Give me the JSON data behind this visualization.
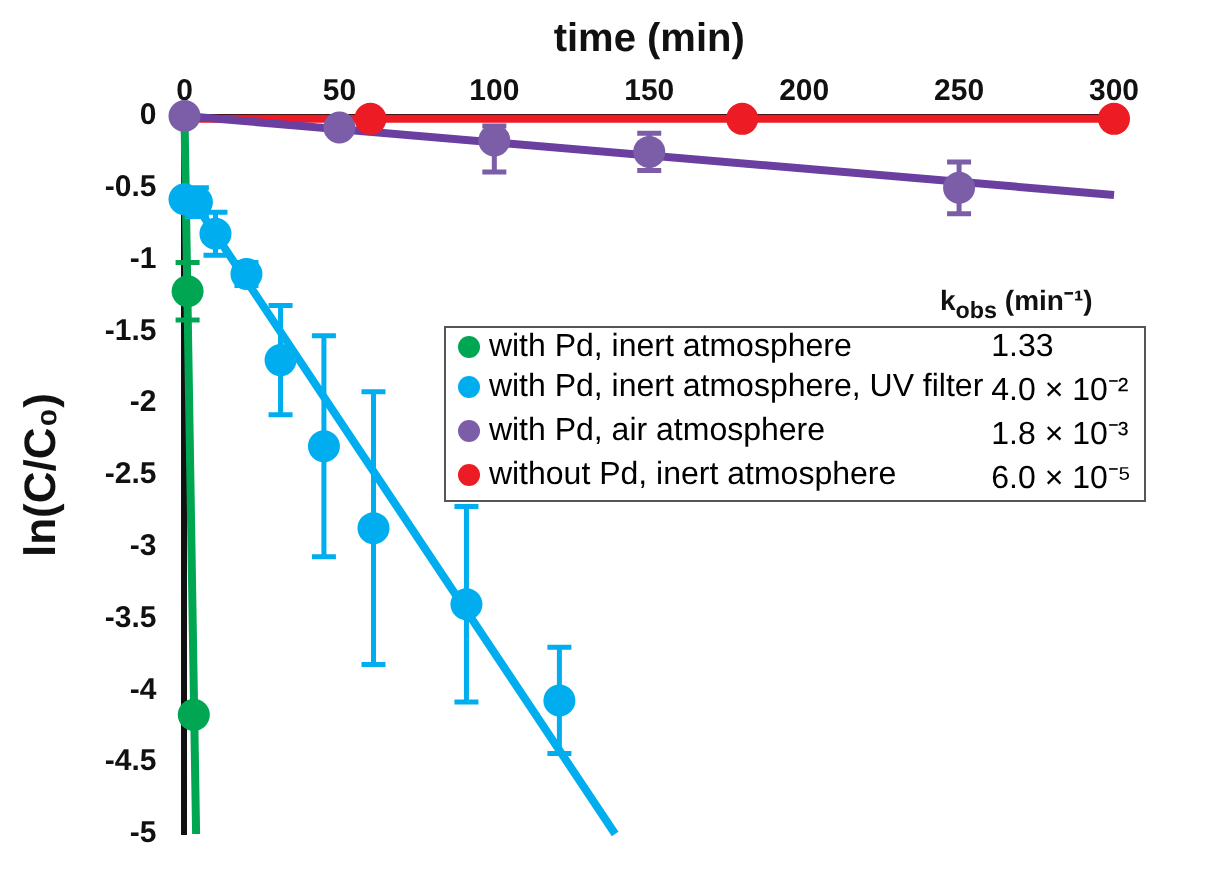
{
  "chart_data": {
    "type": "scatter",
    "xlabel": "time (min)",
    "ylabel": "ln(C/C₀)",
    "xlim": [
      0,
      300
    ],
    "xticks": [
      0,
      50,
      100,
      150,
      200,
      250,
      300
    ],
    "ylim": [
      -5,
      0
    ],
    "yticks": [
      0,
      -0.5,
      -1,
      -1.5,
      -2,
      -2.5,
      -3,
      -3.5,
      -4,
      -4.5,
      -5
    ],
    "grid": false,
    "legend": "right",
    "annotations": [
      "k$_{obs}$ (min⁻¹)",
      "1.33",
      "4.0 × 10⁻²",
      "1.8 × 10⁻³",
      "6.0 × 10⁻⁵"
    ],
    "series": [
      {
        "type": "line",
        "marker": "none",
        "color": "#00a651",
        "x": [
          0,
          3.75
        ],
        "values": [
          0,
          -5
        ]
      },
      {
        "type": "line",
        "marker": "none",
        "color": "#00aeef",
        "x": [
          0,
          139
        ],
        "values": [
          -0.5,
          -5
        ]
      },
      {
        "type": "line",
        "marker": "none",
        "color": "#6a3fa0",
        "x": [
          0,
          300
        ],
        "values": [
          0,
          -0.55
        ]
      },
      {
        "type": "line",
        "marker": "none",
        "color": "#ed1c24",
        "x": [
          0,
          300
        ],
        "values": [
          -0.02,
          -0.02
        ]
      },
      {
        "marker": "circle",
        "name": "with Pd, inert atmosphere",
        "color": "#00a651",
        "x": [
          1,
          3
        ],
        "values": [
          -1.22,
          -4.17
        ],
        "errors": [
          0.2,
          null
        ]
      },
      {
        "marker": "circle",
        "name": "with Pd, inert atmosphere, UV filter",
        "color": "#00aeef",
        "x": [
          0,
          4,
          10,
          20,
          31,
          45,
          61,
          91,
          121
        ],
        "values": [
          -0.58,
          -0.6,
          -0.82,
          -1.1,
          -1.7,
          -2.3,
          -2.87,
          -3.4,
          -4.07
        ],
        "errors": [
          null,
          0.1,
          0.15,
          0.08,
          0.38,
          0.77,
          0.95,
          0.68,
          0.37
        ]
      },
      {
        "marker": "circle",
        "name": "with Pd, air atmosphere",
        "color": "#7b5ea7",
        "x": [
          0,
          50,
          100,
          150,
          250
        ],
        "values": [
          0,
          -0.08,
          -0.17,
          -0.25,
          -0.5
        ],
        "errors": [
          null,
          null,
          [
            -0.39,
            -0.07
          ],
          0.13,
          0.18
        ]
      },
      {
        "marker": "circle",
        "name": "without Pd, inert atmosphere",
        "color": "#ed1c24",
        "x": [
          60,
          180,
          300
        ],
        "values": [
          -0.02,
          -0.02,
          -0.02
        ],
        "errors": [
          null,
          null,
          null
        ]
      }
    ]
  }
}
